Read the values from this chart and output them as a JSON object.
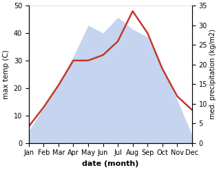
{
  "months": [
    "Jan",
    "Feb",
    "Mar",
    "Apr",
    "May",
    "Jun",
    "Jul",
    "Aug",
    "Sep",
    "Oct",
    "Nov",
    "Dec"
  ],
  "temperature": [
    6,
    13,
    21,
    30,
    30,
    32,
    37,
    48,
    40,
    27,
    17,
    12
  ],
  "precipitation": [
    3,
    9,
    15,
    22,
    30,
    28,
    32,
    29,
    27,
    19,
    11,
    2
  ],
  "temp_color": "#c0392b",
  "precip_fill_color": "#c5d4ef",
  "ylabel_left": "max temp (C)",
  "ylabel_right": "med. precipitation (kg/m2)",
  "xlabel": "date (month)",
  "ylim_left": [
    0,
    50
  ],
  "ylim_right": [
    0,
    35
  ],
  "yticks_left": [
    0,
    10,
    20,
    30,
    40,
    50
  ],
  "yticks_right": [
    0,
    5,
    10,
    15,
    20,
    25,
    30,
    35
  ],
  "figsize": [
    3.18,
    2.47
  ],
  "dpi": 100
}
